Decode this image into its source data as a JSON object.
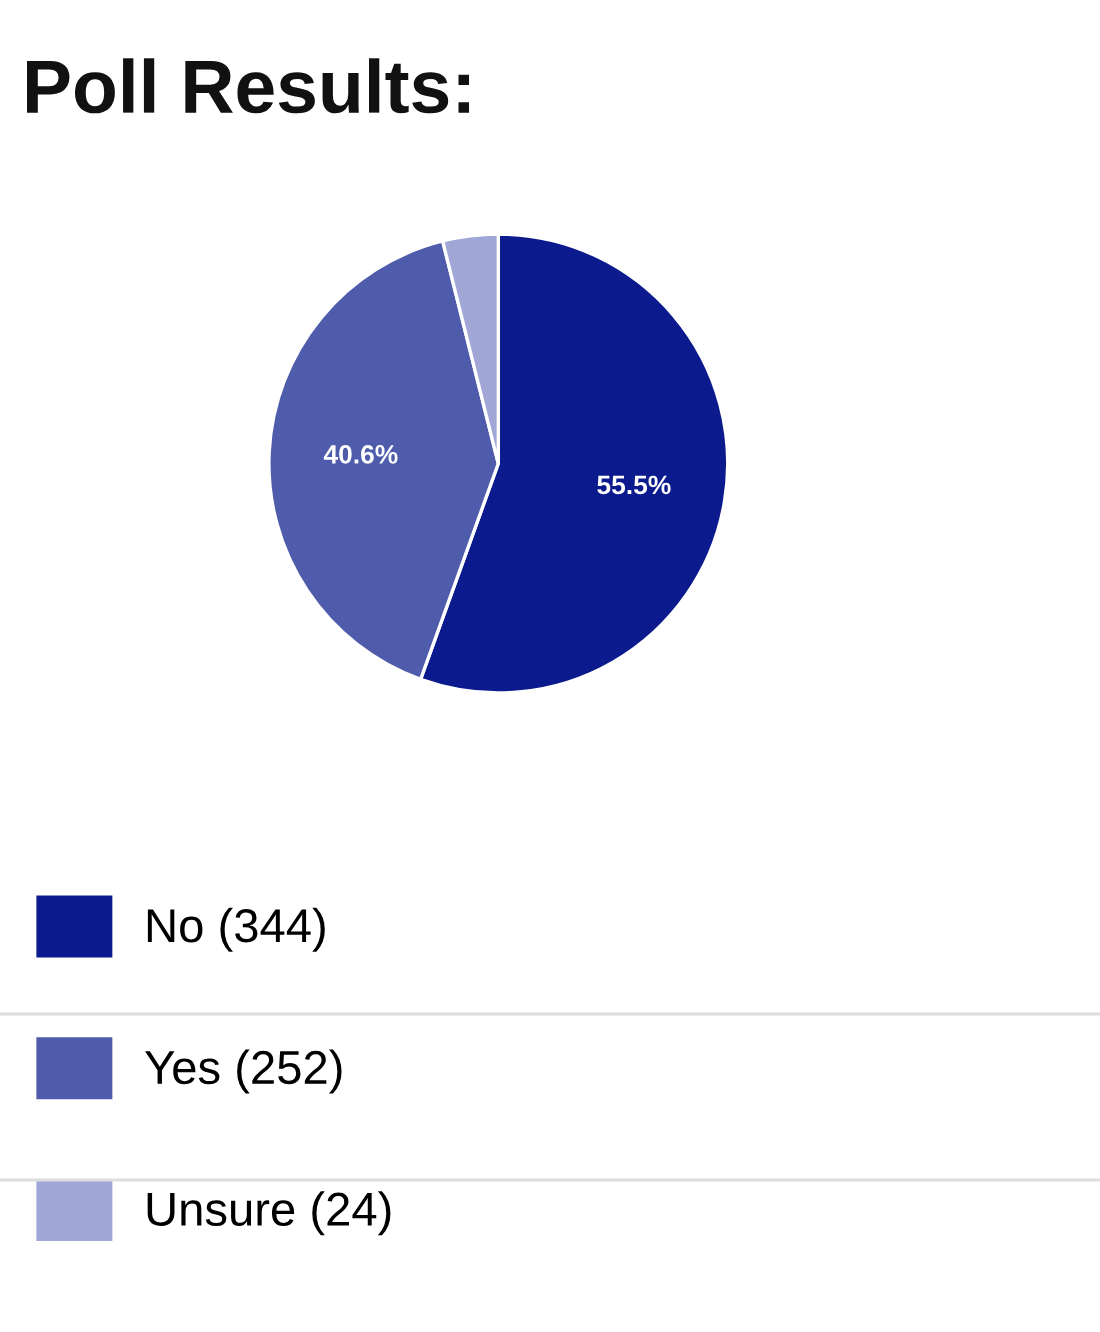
{
  "chart_data": {
    "type": "pie",
    "title": "Poll Results:",
    "categories": [
      "No (344)",
      "Yes (252)",
      "Unsure (24)"
    ],
    "values": [
      55.5,
      40.6,
      3.9
    ],
    "colors": [
      "#0b1a8c",
      "#4f5cab",
      "#a0a6d6"
    ],
    "value_labels": [
      "55.5%",
      "40.6%",
      null
    ],
    "legend": "bottom"
  }
}
